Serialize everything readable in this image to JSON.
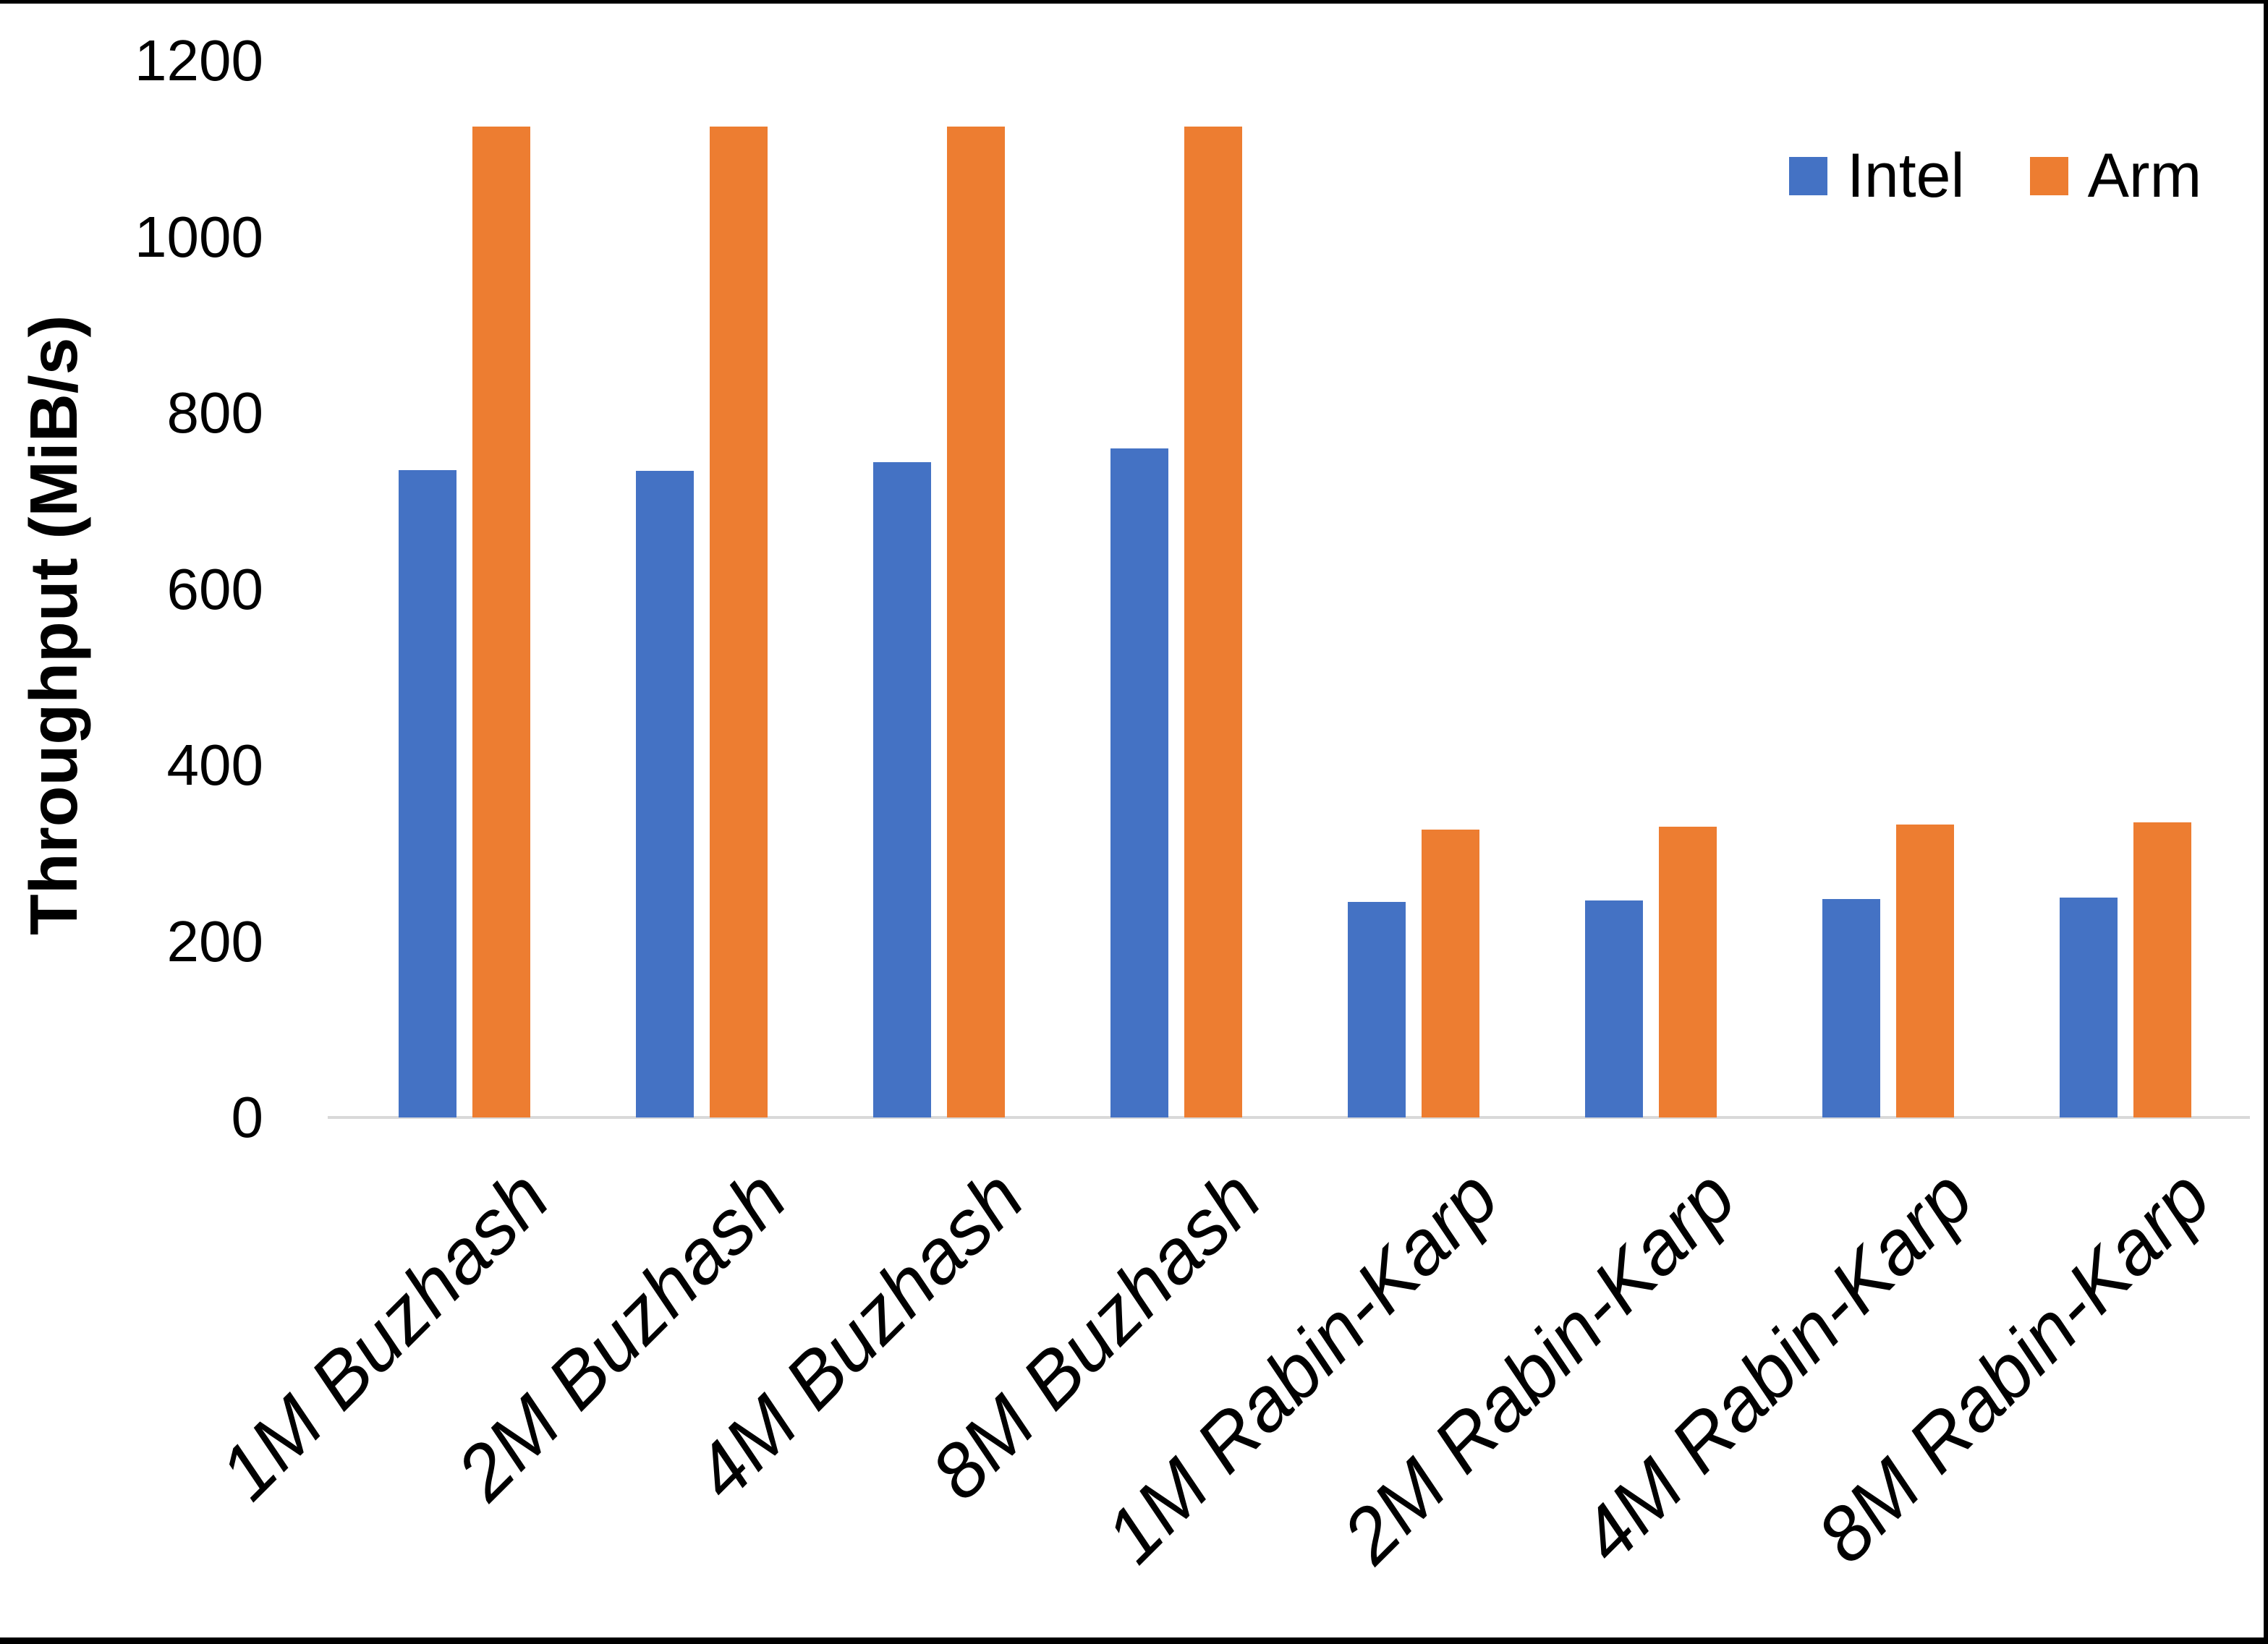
{
  "chart_data": {
    "type": "bar",
    "title": "",
    "xlabel": "",
    "ylabel": "Throughput (MiB/s)",
    "ylim": [
      0,
      1200
    ],
    "yticks": [
      0,
      200,
      400,
      600,
      800,
      1000,
      1200
    ],
    "grid": false,
    "legend_position": "top-right",
    "categories": [
      "1M Buzhash",
      "2M Buzhash",
      "4M Buzhash",
      "8M Buzhash",
      "1M Rabin-Karp",
      "2M Rabin-Karp",
      "4M Rabin-Karp",
      "8M Rabin-Karp"
    ],
    "series": [
      {
        "name": "Intel",
        "color": "#4472C4",
        "values": [
          735,
          734,
          744,
          760,
          245,
          246,
          248,
          250
        ]
      },
      {
        "name": "Arm",
        "color": "#ED7D31",
        "values": [
          1125,
          1125,
          1125,
          1125,
          327,
          330,
          333,
          335
        ]
      }
    ]
  },
  "colors": {
    "background": "#FFFFFF",
    "frame": "#000000",
    "axis_line": "#D9D9D9",
    "text": "#000000"
  }
}
